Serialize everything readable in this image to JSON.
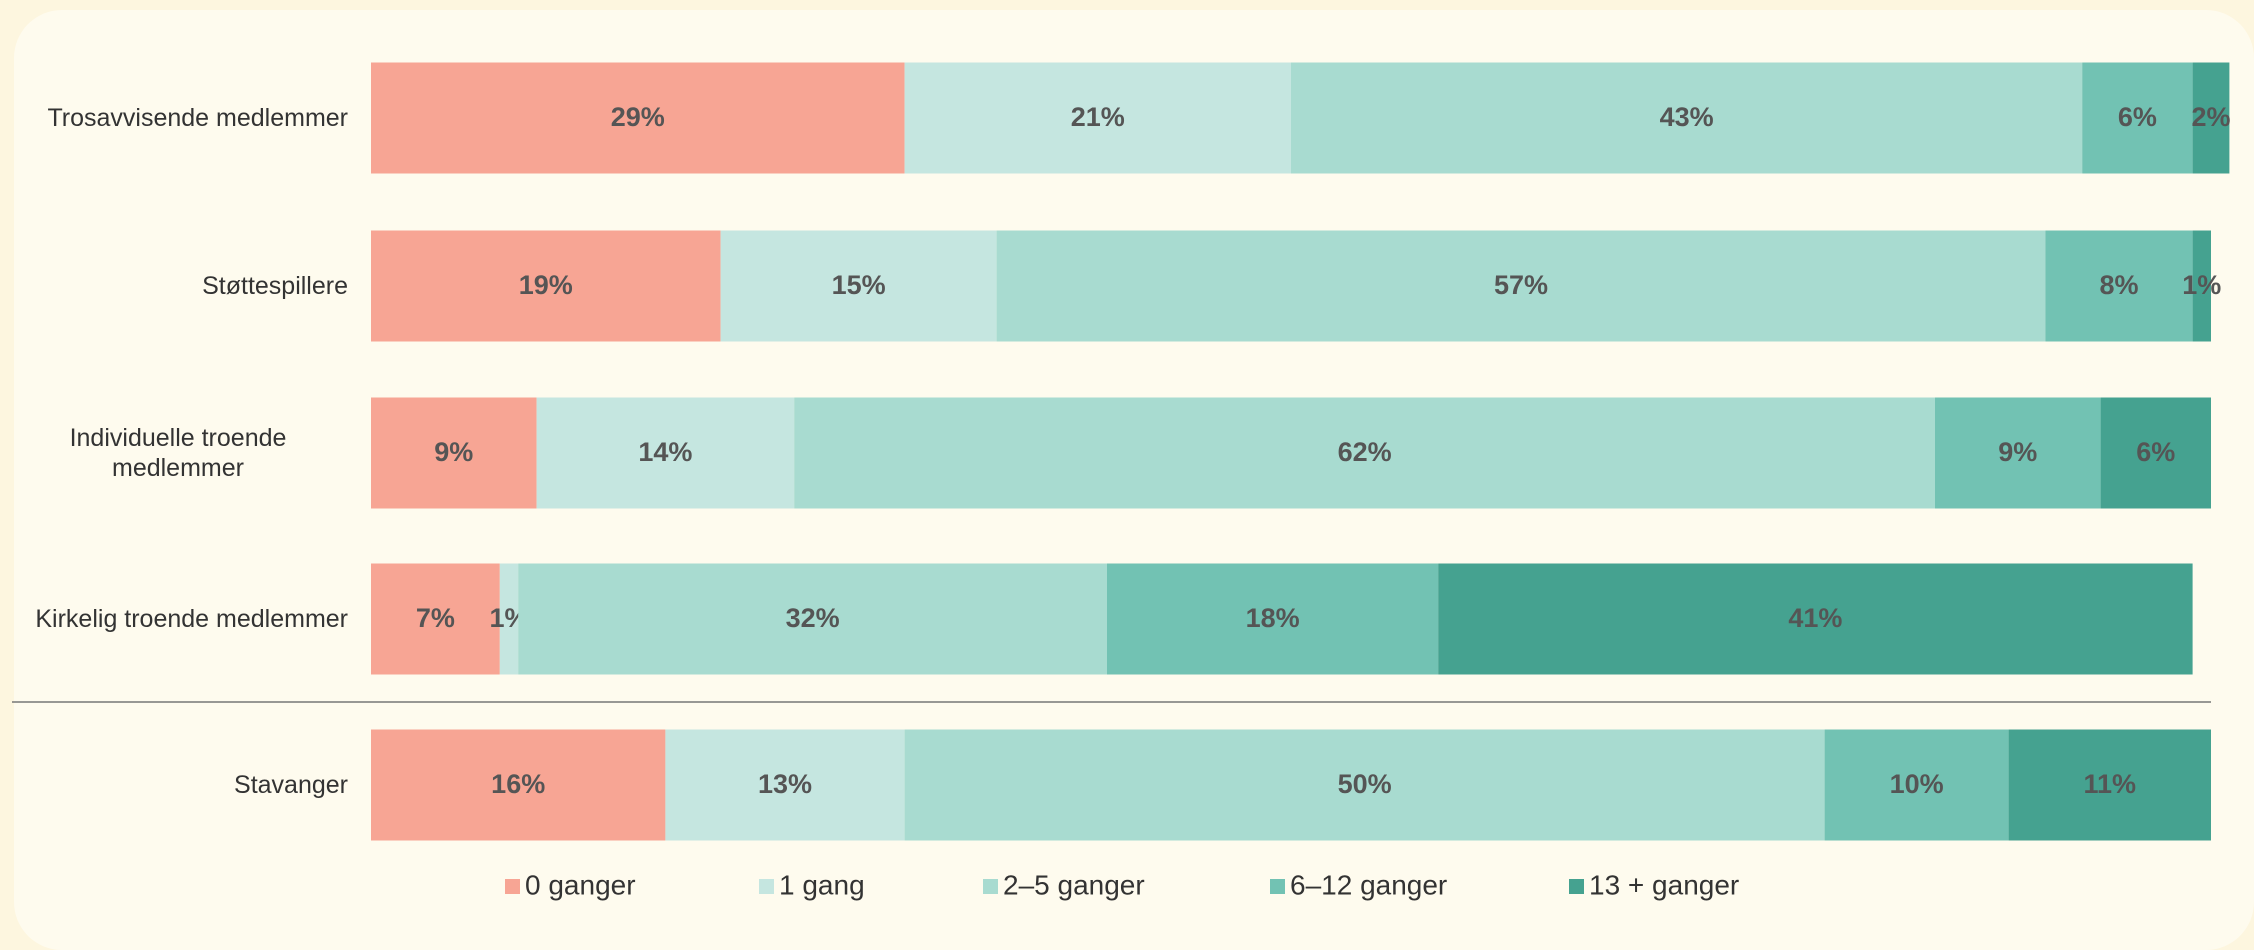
{
  "chart_data": {
    "type": "stacked-bar-horizontal",
    "categories": [
      "Trosavvisende medlemmer",
      "Støttespillere",
      "Individuelle troende medlemmer",
      "Kirkelig troende medlemmer",
      "Stavanger"
    ],
    "xlim": [
      0,
      100
    ],
    "series": [
      {
        "name": "0 ganger",
        "color": "#f7a594",
        "values": [
          29,
          19,
          9,
          7,
          16
        ],
        "value_labels": [
          "29%",
          "19%",
          "9%",
          "7%",
          "16%"
        ]
      },
      {
        "name": "1 gang",
        "color": "#c5e6e0",
        "values": [
          21,
          15,
          14,
          1,
          13
        ],
        "value_labels": [
          "21%",
          "15%",
          "14%",
          "1%",
          "13%"
        ]
      },
      {
        "name": "2–5 ganger",
        "color": "#a8dbd0",
        "values": [
          43,
          57,
          62,
          32,
          50
        ],
        "value_labels": [
          "43%",
          "57%",
          "62%",
          "32%",
          "50%"
        ]
      },
      {
        "name": "6–12 ganger",
        "color": "#72c2b3",
        "values": [
          6,
          8,
          9,
          18,
          10
        ],
        "value_labels": [
          "6%",
          "8%",
          "9%",
          "18%",
          "10%"
        ]
      },
      {
        "name": "13 + ganger",
        "color": "#45a290",
        "values": [
          2,
          1,
          6,
          41,
          11
        ],
        "value_labels": [
          "2%",
          "1%",
          "6%",
          "41%",
          "11%"
        ]
      }
    ]
  }
}
